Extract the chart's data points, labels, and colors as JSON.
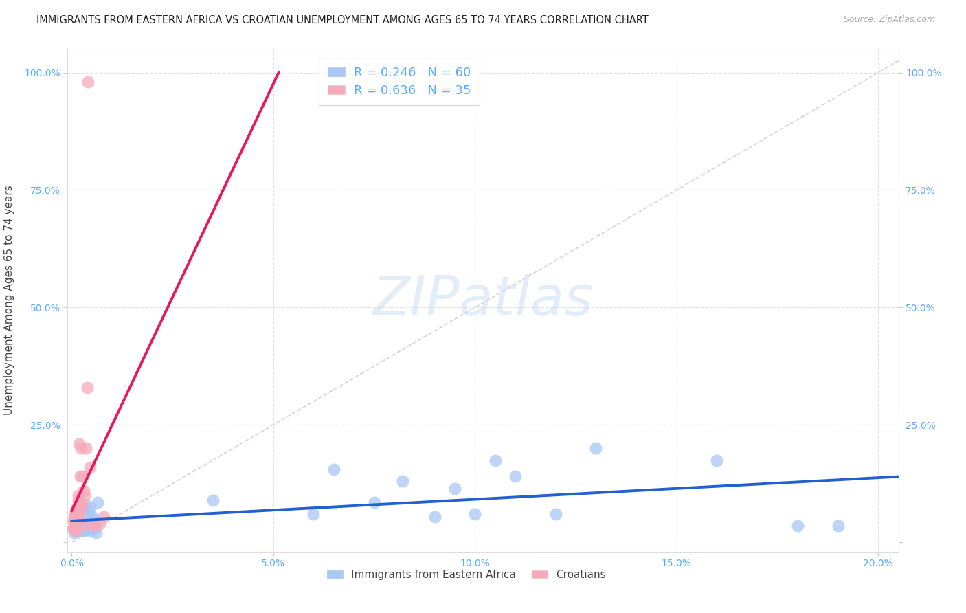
{
  "title": "IMMIGRANTS FROM EASTERN AFRICA VS CROATIAN UNEMPLOYMENT AMONG AGES 65 TO 74 YEARS CORRELATION CHART",
  "source": "Source: ZipAtlas.com",
  "ylabel": "Unemployment Among Ages 65 to 74 years",
  "xlim": [
    -0.001,
    0.205
  ],
  "ylim": [
    -0.02,
    1.05
  ],
  "xticks": [
    0.0,
    0.05,
    0.1,
    0.15,
    0.2
  ],
  "yticks": [
    0.0,
    0.25,
    0.5,
    0.75,
    1.0
  ],
  "xticklabels": [
    "0.0%",
    "5.0%",
    "10.0%",
    "15.0%",
    "20.0%"
  ],
  "yticklabels": [
    "",
    "25.0%",
    "50.0%",
    "75.0%",
    "100.0%"
  ],
  "watermark": "ZIPatlas",
  "blue_scatter_color": "#aac8f5",
  "pink_scatter_color": "#f5aabb",
  "blue_trend_color": "#2060d0",
  "pink_trend_color": "#e8185c",
  "diag_line_color": "#cccccc",
  "background_color": "#ffffff",
  "grid_color": "#e0e0e0",
  "tick_color": "#5aabff",
  "label_color": "#444444",
  "series_blue_name": "Immigrants from Eastern Africa",
  "series_pink_name": "Croatians",
  "blue_R": "0.246",
  "blue_N": "60",
  "pink_R": "0.636",
  "pink_N": "35",
  "blue_x": [
    0.0005,
    0.0006,
    0.0007,
    0.0008,
    0.0009,
    0.001,
    0.001,
    0.0011,
    0.0012,
    0.0013,
    0.0014,
    0.0015,
    0.0015,
    0.0016,
    0.0017,
    0.0018,
    0.0019,
    0.002,
    0.002,
    0.0021,
    0.0022,
    0.0023,
    0.0024,
    0.0025,
    0.0026,
    0.0027,
    0.0028,
    0.003,
    0.003,
    0.0032,
    0.0033,
    0.0035,
    0.0036,
    0.0038,
    0.004,
    0.0042,
    0.0044,
    0.0045,
    0.0048,
    0.005,
    0.0052,
    0.0055,
    0.0058,
    0.006,
    0.0065,
    0.035,
    0.06,
    0.065,
    0.075,
    0.082,
    0.09,
    0.095,
    0.1,
    0.105,
    0.11,
    0.12,
    0.13,
    0.16,
    0.18,
    0.19
  ],
  "blue_y": [
    0.03,
    0.05,
    0.02,
    0.04,
    0.06,
    0.025,
    0.055,
    0.03,
    0.045,
    0.07,
    0.025,
    0.04,
    0.065,
    0.03,
    0.05,
    0.025,
    0.035,
    0.03,
    0.055,
    0.025,
    0.04,
    0.07,
    0.03,
    0.05,
    0.025,
    0.06,
    0.035,
    0.03,
    0.07,
    0.025,
    0.08,
    0.045,
    0.03,
    0.05,
    0.04,
    0.065,
    0.03,
    0.075,
    0.025,
    0.055,
    0.04,
    0.03,
    0.045,
    0.02,
    0.085,
    0.09,
    0.06,
    0.155,
    0.085,
    0.13,
    0.055,
    0.115,
    0.06,
    0.175,
    0.14,
    0.06,
    0.2,
    0.175,
    0.035,
    0.035
  ],
  "pink_x": [
    0.0004,
    0.0005,
    0.0006,
    0.0007,
    0.0008,
    0.0009,
    0.001,
    0.001,
    0.0011,
    0.0012,
    0.0013,
    0.0014,
    0.0015,
    0.0016,
    0.0016,
    0.0017,
    0.0018,
    0.0019,
    0.002,
    0.0021,
    0.0022,
    0.0023,
    0.0025,
    0.0027,
    0.0028,
    0.003,
    0.0032,
    0.0035,
    0.0038,
    0.004,
    0.0045,
    0.005,
    0.006,
    0.007,
    0.008
  ],
  "pink_y": [
    0.03,
    0.045,
    0.03,
    0.055,
    0.03,
    0.04,
    0.025,
    0.065,
    0.055,
    0.04,
    0.075,
    0.03,
    0.055,
    0.09,
    0.1,
    0.06,
    0.07,
    0.21,
    0.08,
    0.14,
    0.075,
    0.2,
    0.08,
    0.14,
    0.04,
    0.11,
    0.1,
    0.2,
    0.33,
    0.98,
    0.16,
    0.035,
    0.04,
    0.04,
    0.055
  ]
}
